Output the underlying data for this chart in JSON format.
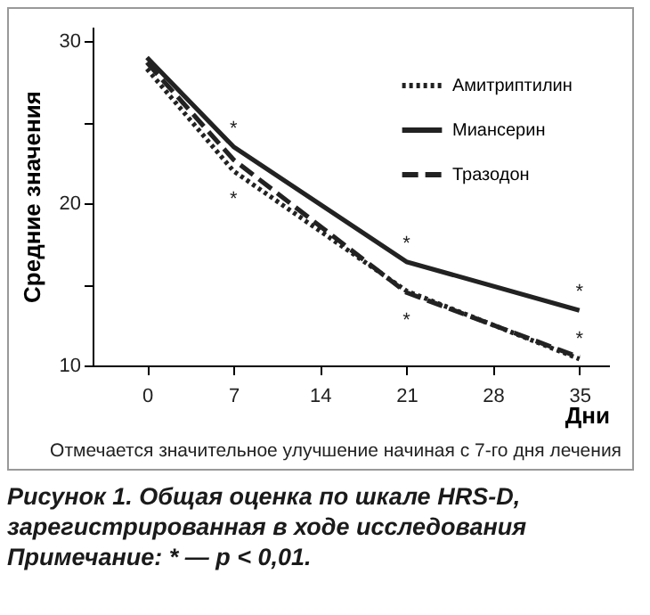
{
  "chart_data": {
    "type": "line",
    "title": "Рисунок 1. Общая оценка по шкале HRS-D, зарегистрированная в ходе исследования",
    "xlabel": "Дни",
    "ylabel": "Средние значения",
    "x": [
      0,
      7,
      21,
      35
    ],
    "series": [
      {
        "name": "Амитриптилин",
        "color": "#222222",
        "line_style": "dotted",
        "values": [
          28.3,
          22.0,
          14.6,
          10.4
        ]
      },
      {
        "name": "Миансерин",
        "color": "#222222",
        "line_style": "solid",
        "values": [
          29.0,
          23.5,
          16.4,
          13.4
        ]
      },
      {
        "name": "Тразодон",
        "color": "#222222",
        "line_style": "dashed",
        "values": [
          28.7,
          22.7,
          14.5,
          10.5
        ]
      }
    ],
    "xlim": [
      -4.4,
      37.4
    ],
    "xticks": [
      0,
      7,
      14,
      21,
      28,
      35
    ],
    "ylim": [
      10,
      30.9
    ],
    "yticks": [
      10,
      {
        "value": 15,
        "label": null
      },
      20,
      {
        "value": 25,
        "label": null
      },
      30
    ],
    "annotations": [
      {
        "text": "*",
        "x": 7,
        "y": 23.5
      },
      {
        "text": "*",
        "x": 7,
        "y": 22.0
      },
      {
        "text": "*",
        "x": 21,
        "y": 16.4
      },
      {
        "text": "*",
        "x": 21,
        "y": 14.5
      },
      {
        "text": "*",
        "x": 35,
        "y": 13.4
      },
      {
        "text": "*",
        "x": 35,
        "y": 10.5
      },
      "Отмечается значительное улучшение начиная с 7-го дня лечения",
      "Примечание: * — p < 0,01."
    ],
    "legend": "top right",
    "marker": "none",
    "grid": false
  }
}
